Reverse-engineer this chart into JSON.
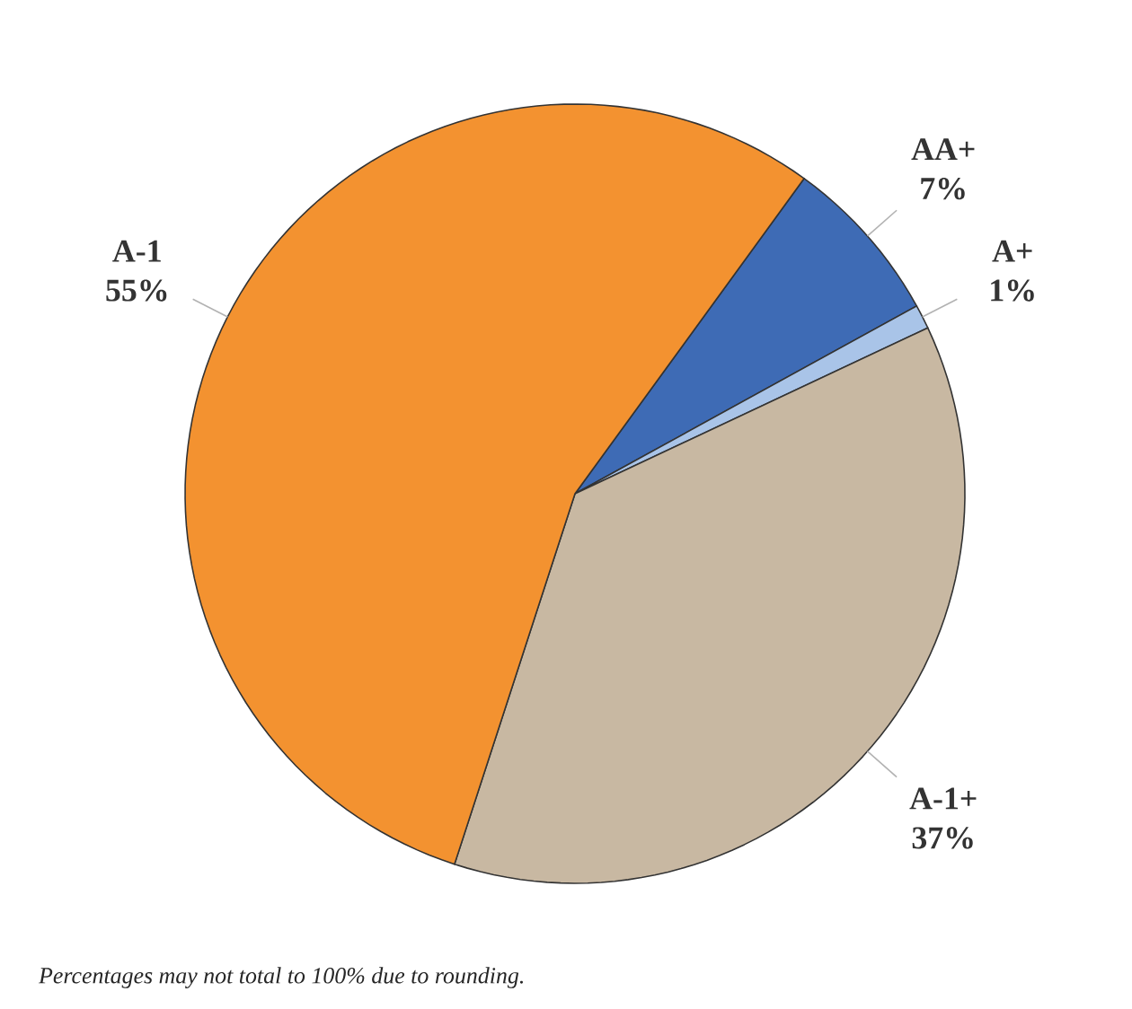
{
  "chart_data": {
    "type": "pie",
    "categories": [
      "AA+",
      "A+",
      "A-1+",
      "A-1"
    ],
    "values": [
      7,
      1,
      37,
      55
    ],
    "value_labels": [
      "7%",
      "1%",
      "37%",
      "55%"
    ],
    "colors": [
      "#3e6bb5",
      "#a9c4e8",
      "#c8b8a2",
      "#f39230"
    ],
    "annotations": [
      "Percentages may not total to 100% due to rounding."
    ]
  }
}
